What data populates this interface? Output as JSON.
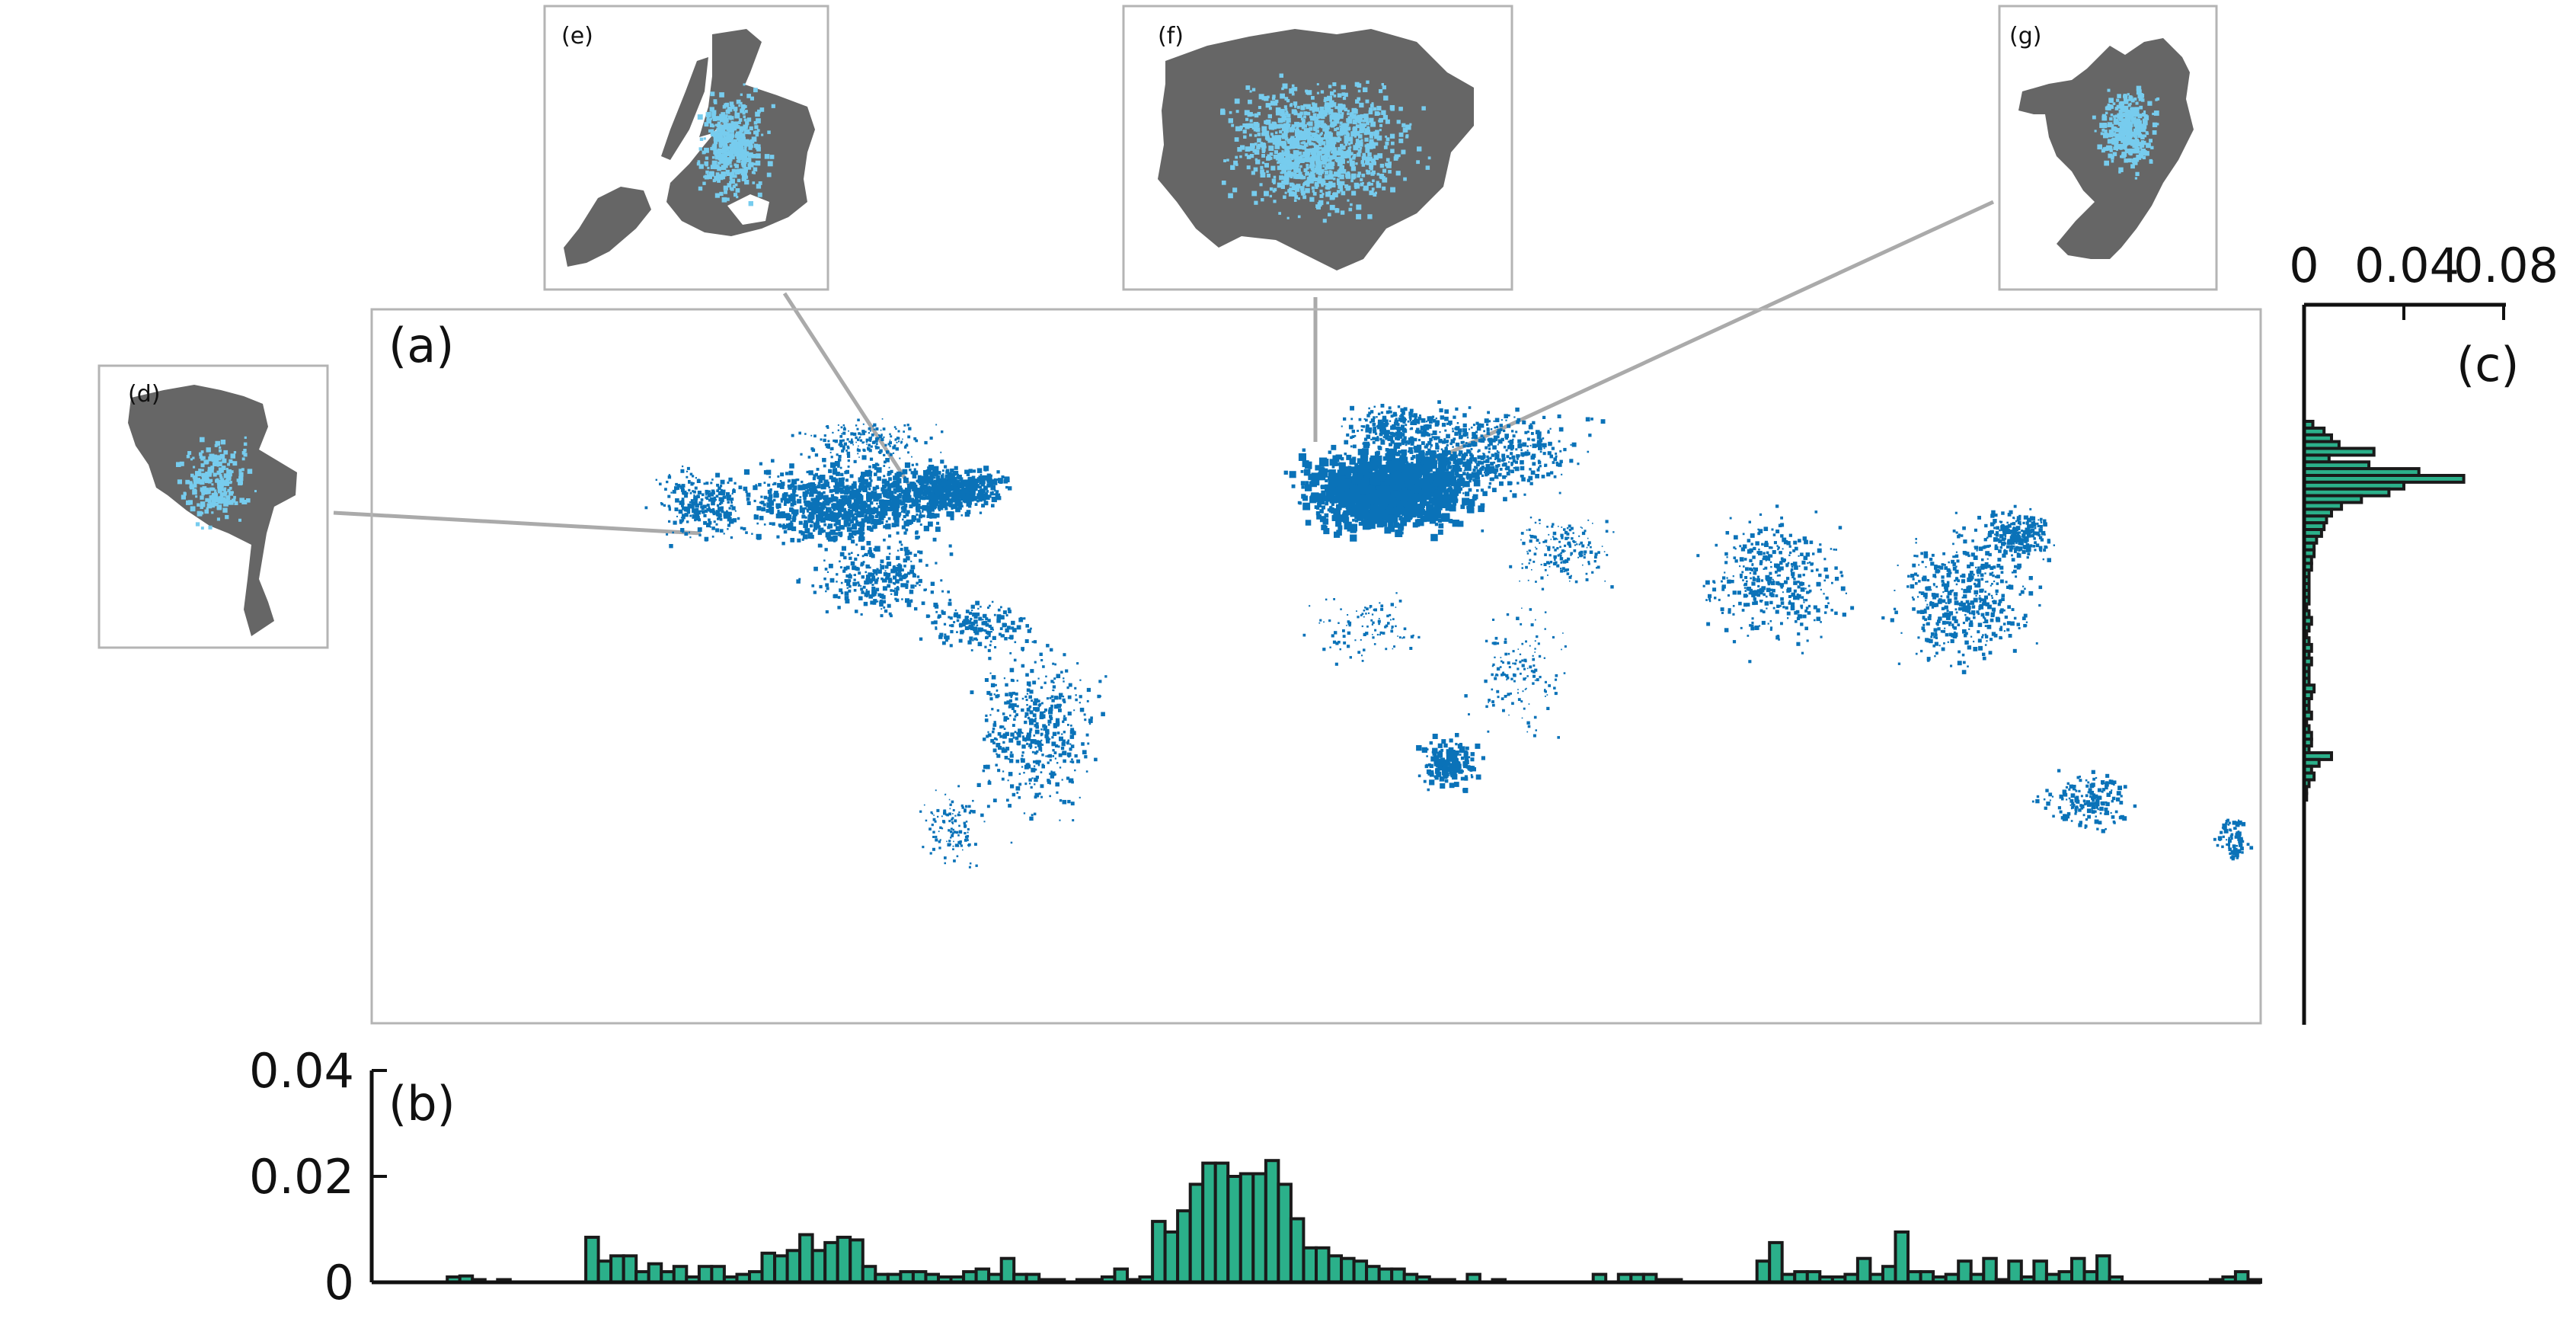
{
  "panels": {
    "a": "(a)",
    "b": "(b)",
    "c": "(c)",
    "d": "(d)",
    "e": "(e)",
    "f": "(f)",
    "g": "(g)"
  },
  "colors": {
    "map_dots": "#0a72b8",
    "inset_fill": "#666666",
    "inset_dots": "#77ccee",
    "histogram_fill": "#2bb08a",
    "histogram_stroke": "#1a1a1a",
    "frame": "#b4b4b4",
    "connector": "#aaaaaa"
  },
  "chart_data": [
    {
      "type": "bar",
      "orientation": "vertical",
      "panel": "(b)",
      "ylim": [
        0,
        0.04
      ],
      "yticks": [
        "0",
        "0.02",
        "0.04"
      ],
      "values": [
        0,
        0,
        0,
        0,
        0,
        0,
        0.001,
        0.0012,
        0.0005,
        0,
        0.0005,
        0,
        0,
        0,
        0,
        0,
        0,
        0.0085,
        0.004,
        0.005,
        0.005,
        0.002,
        0.0035,
        0.002,
        0.003,
        0.001,
        0.003,
        0.003,
        0.001,
        0.0015,
        0.002,
        0.0055,
        0.005,
        0.006,
        0.009,
        0.006,
        0.0075,
        0.0085,
        0.008,
        0.003,
        0.0015,
        0.0015,
        0.002,
        0.002,
        0.0015,
        0.001,
        0.001,
        0.002,
        0.0025,
        0.0015,
        0.0045,
        0.0015,
        0.0015,
        0.0005,
        0.0005,
        0,
        0.0005,
        0.0005,
        0.001,
        0.0025,
        0.0005,
        0.001,
        0.0115,
        0.0095,
        0.0135,
        0.0185,
        0.0225,
        0.0225,
        0.02,
        0.0205,
        0.0205,
        0.023,
        0.0185,
        0.012,
        0.0065,
        0.0065,
        0.005,
        0.0045,
        0.004,
        0.003,
        0.0025,
        0.0025,
        0.0015,
        0.001,
        0.0005,
        0.0005,
        0,
        0.0015,
        0,
        0.0005,
        0,
        0,
        0,
        0,
        0,
        0,
        0,
        0.0015,
        0,
        0.0015,
        0.0015,
        0.0015,
        0.0005,
        0.0005,
        0,
        0,
        0,
        0,
        0,
        0,
        0.004,
        0.0075,
        0.0015,
        0.002,
        0.002,
        0.001,
        0.001,
        0.0015,
        0.0045,
        0.0015,
        0.003,
        0.0095,
        0.002,
        0.002,
        0.001,
        0.0015,
        0.004,
        0.0015,
        0.0045,
        0.0005,
        0.004,
        0.001,
        0.004,
        0.0015,
        0.002,
        0.0045,
        0.002,
        0.005,
        0.001,
        0,
        0,
        0,
        0,
        0,
        0,
        0,
        0.0005,
        0.001,
        0.002,
        0.0005
      ]
    },
    {
      "type": "bar",
      "orientation": "horizontal",
      "panel": "(c)",
      "xlim": [
        0,
        0.08
      ],
      "xticks": [
        "0",
        "0.04",
        "0.08"
      ],
      "values": [
        0.0035,
        0.008,
        0.011,
        0.014,
        0.028,
        0.01,
        0.026,
        0.046,
        0.064,
        0.04,
        0.034,
        0.023,
        0.015,
        0.011,
        0.009,
        0.008,
        0.007,
        0.005,
        0.004,
        0.004,
        0.003,
        0.003,
        0.002,
        0.002,
        0.002,
        0.002,
        0.002,
        0.001,
        0.002,
        0.003,
        0.002,
        0.001,
        0.002,
        0.003,
        0.002,
        0.003,
        0.002,
        0.002,
        0.002,
        0.004,
        0.003,
        0.002,
        0.002,
        0.003,
        0.001,
        0.002,
        0.003,
        0.003,
        0.002,
        0.011,
        0.006,
        0.003,
        0.004,
        0.002,
        0.001,
        0.001,
        0,
        0,
        0,
        0,
        0,
        0,
        0,
        0,
        0
      ]
    }
  ]
}
